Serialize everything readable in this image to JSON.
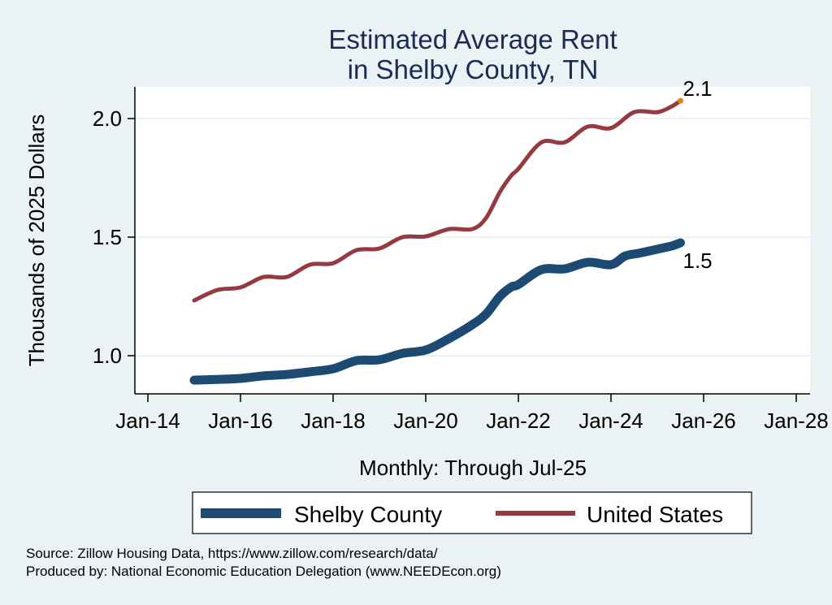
{
  "chart_data": {
    "type": "line",
    "title": [
      "Estimated Average Rent",
      "in Shelby County, TN"
    ],
    "xlabel": "Monthly: Through Jul-25",
    "ylabel": "Thousands of 2025 Dollars",
    "xlim": [
      2013.7,
      2028.3
    ],
    "ylim": [
      0.84,
      2.11
    ],
    "x_ticks": [
      2014,
      2016,
      2018,
      2020,
      2022,
      2024,
      2026,
      2028
    ],
    "x_tick_labels": [
      "Jan-14",
      "Jan-16",
      "Jan-18",
      "Jan-20",
      "Jan-22",
      "Jan-24",
      "Jan-26",
      "Jan-28"
    ],
    "y_ticks": [
      1.0,
      1.5,
      2.0
    ],
    "y_tick_labels": [
      "1.0",
      "1.5",
      "2.0"
    ],
    "grid": true,
    "legend_position": "bottom",
    "series": [
      {
        "name": "Shelby County",
        "color": "#1c4a72",
        "x": [
          2015.0,
          2015.5,
          2016.0,
          2016.5,
          2017.0,
          2017.5,
          2018.0,
          2018.5,
          2019.0,
          2019.5,
          2020.0,
          2020.5,
          2021.0,
          2021.3,
          2021.6,
          2021.85,
          2022.0,
          2022.5,
          2023.0,
          2023.5,
          2024.0,
          2024.3,
          2024.6,
          2025.0,
          2025.3,
          2025.5
        ],
        "values": [
          0.897,
          0.9,
          0.904,
          0.915,
          0.921,
          0.932,
          0.945,
          0.979,
          0.983,
          1.01,
          1.024,
          1.072,
          1.13,
          1.175,
          1.25,
          1.29,
          1.3,
          1.363,
          1.366,
          1.394,
          1.384,
          1.42,
          1.432,
          1.449,
          1.462,
          1.476
        ]
      },
      {
        "name": "United States",
        "color": "#943a40",
        "x": [
          2015.0,
          2015.5,
          2016.0,
          2016.5,
          2017.0,
          2017.5,
          2018.0,
          2018.5,
          2019.0,
          2019.5,
          2020.0,
          2020.5,
          2021.0,
          2021.3,
          2021.6,
          2021.85,
          2022.0,
          2022.5,
          2023.0,
          2023.5,
          2024.0,
          2024.5,
          2025.0,
          2025.3,
          2025.5
        ],
        "values": [
          1.233,
          1.277,
          1.288,
          1.332,
          1.332,
          1.384,
          1.39,
          1.445,
          1.452,
          1.5,
          1.503,
          1.534,
          1.534,
          1.58,
          1.69,
          1.76,
          1.788,
          1.9,
          1.9,
          1.966,
          1.96,
          2.027,
          2.027,
          2.05,
          2.075
        ]
      }
    ],
    "end_labels": [
      {
        "series": "United States",
        "text": "2.1",
        "marker_color": "#e8820c"
      },
      {
        "series": "Shelby County",
        "text": "1.5"
      }
    ]
  },
  "legend": {
    "items": [
      {
        "label": "Shelby County",
        "color": "#1c4a72"
      },
      {
        "label": "United States",
        "color": "#943a40"
      }
    ]
  },
  "notes": {
    "source": "Source: Zillow Housing Data, https://www.zillow.com/research/data/",
    "produced_by": "Produced by: National Economic Education Delegation (www.NEEDEcon.org)"
  },
  "colors": {
    "background": "#eaf2f3",
    "plot_background": "#ffffff",
    "gridline": "#eaf2f3",
    "title": "#1a2b56"
  }
}
